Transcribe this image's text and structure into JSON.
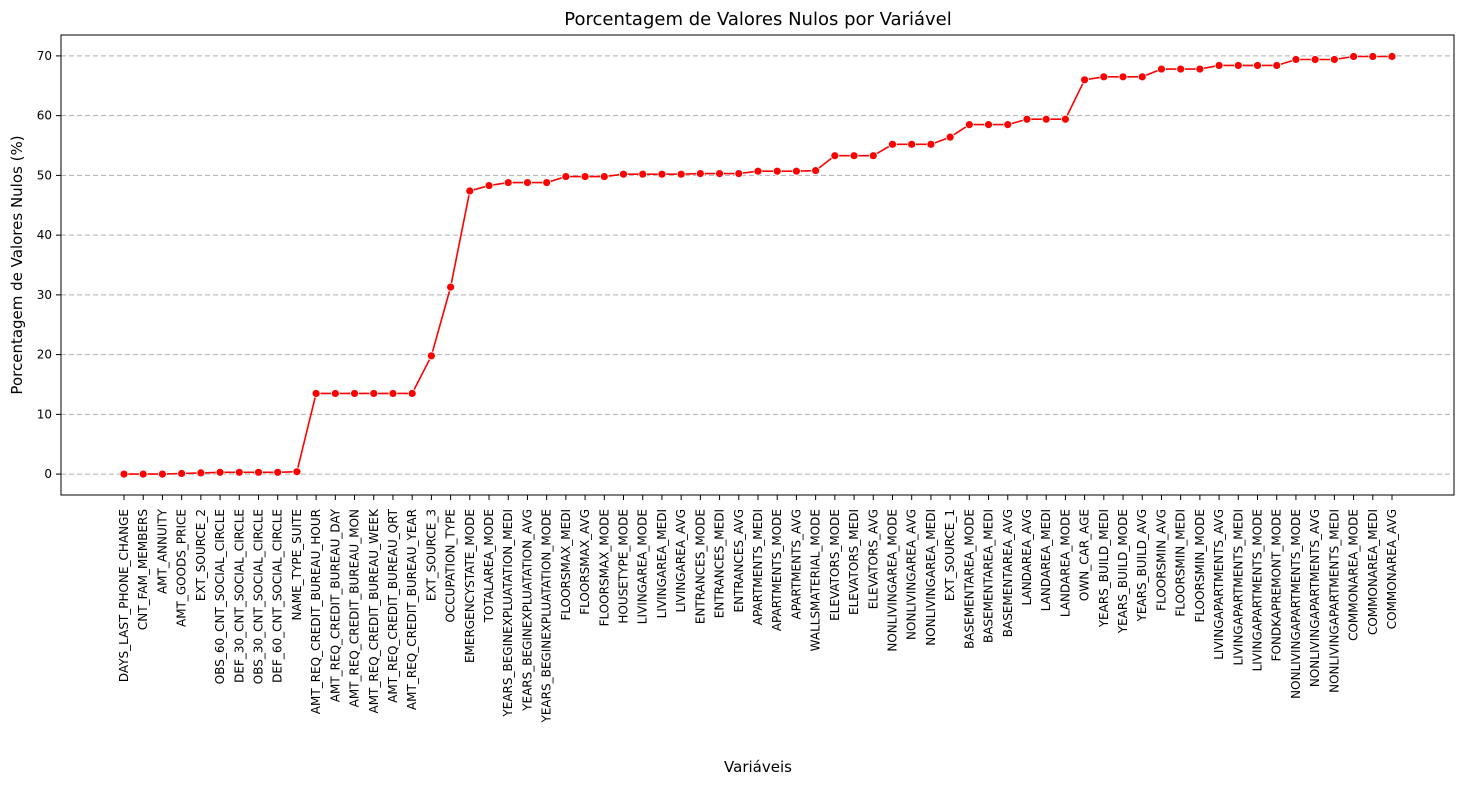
{
  "chart_data": {
    "type": "line",
    "title": "Porcentagem de Valores Nulos por Variável",
    "xlabel": "Variáveis",
    "ylabel": "Porcentagem de Valores Nulos (%)",
    "ylim": [
      -3.5,
      73.5
    ],
    "yticks": [
      0,
      10,
      20,
      30,
      40,
      50,
      60,
      70
    ],
    "grid": "y-dashed",
    "colors": {
      "line": "#ff0000",
      "marker": "#ff0000"
    },
    "categories": [
      "DAYS_LAST_PHONE_CHANGE",
      "CNT_FAM_MEMBERS",
      "AMT_ANNUITY",
      "AMT_GOODS_PRICE",
      "EXT_SOURCE_2",
      "OBS_60_CNT_SOCIAL_CIRCLE",
      "DEF_30_CNT_SOCIAL_CIRCLE",
      "OBS_30_CNT_SOCIAL_CIRCLE",
      "DEF_60_CNT_SOCIAL_CIRCLE",
      "NAME_TYPE_SUITE",
      "AMT_REQ_CREDIT_BUREAU_HOUR",
      "AMT_REQ_CREDIT_BUREAU_DAY",
      "AMT_REQ_CREDIT_BUREAU_MON",
      "AMT_REQ_CREDIT_BUREAU_WEEK",
      "AMT_REQ_CREDIT_BUREAU_QRT",
      "AMT_REQ_CREDIT_BUREAU_YEAR",
      "EXT_SOURCE_3",
      "OCCUPATION_TYPE",
      "EMERGENCYSTATE_MODE",
      "TOTALAREA_MODE",
      "YEARS_BEGINEXPLUATATION_MEDI",
      "YEARS_BEGINEXPLUATATION_AVG",
      "YEARS_BEGINEXPLUATATION_MODE",
      "FLOORSMAX_MEDI",
      "FLOORSMAX_AVG",
      "FLOORSMAX_MODE",
      "HOUSETYPE_MODE",
      "LIVINGAREA_MODE",
      "LIVINGAREA_MEDI",
      "LIVINGAREA_AVG",
      "ENTRANCES_MODE",
      "ENTRANCES_MEDI",
      "ENTRANCES_AVG",
      "APARTMENTS_MEDI",
      "APARTMENTS_MODE",
      "APARTMENTS_AVG",
      "WALLSMATERIAL_MODE",
      "ELEVATORS_MODE",
      "ELEVATORS_MEDI",
      "ELEVATORS_AVG",
      "NONLIVINGAREA_MODE",
      "NONLIVINGAREA_AVG",
      "NONLIVINGAREA_MEDI",
      "EXT_SOURCE_1",
      "BASEMENTAREA_MODE",
      "BASEMENTAREA_MEDI",
      "BASEMENTAREA_AVG",
      "LANDAREA_AVG",
      "LANDAREA_MEDI",
      "LANDAREA_MODE",
      "OWN_CAR_AGE",
      "YEARS_BUILD_MEDI",
      "YEARS_BUILD_MODE",
      "YEARS_BUILD_AVG",
      "FLOORSMIN_AVG",
      "FLOORSMIN_MEDI",
      "FLOORSMIN_MODE",
      "LIVINGAPARTMENTS_AVG",
      "LIVINGAPARTMENTS_MEDI",
      "LIVINGAPARTMENTS_MODE",
      "FONDKAPREMONT_MODE",
      "NONLIVINGAPARTMENTS_MODE",
      "NONLIVINGAPARTMENTS_AVG",
      "NONLIVINGAPARTMENTS_MEDI",
      "COMMONAREA_MODE",
      "COMMONAREA_MEDI",
      "COMMONAREA_AVG"
    ],
    "values": [
      0.0,
      0.0,
      0.0,
      0.1,
      0.2,
      0.3,
      0.3,
      0.3,
      0.3,
      0.4,
      13.5,
      13.5,
      13.5,
      13.5,
      13.5,
      13.5,
      19.8,
      31.3,
      47.4,
      48.3,
      48.8,
      48.8,
      48.8,
      49.8,
      49.8,
      49.8,
      50.2,
      50.2,
      50.2,
      50.2,
      50.3,
      50.3,
      50.3,
      50.7,
      50.7,
      50.7,
      50.8,
      53.3,
      53.3,
      53.3,
      55.2,
      55.2,
      55.2,
      56.4,
      58.5,
      58.5,
      58.5,
      59.4,
      59.4,
      59.4,
      66.0,
      66.5,
      66.5,
      66.5,
      67.8,
      67.8,
      67.8,
      68.4,
      68.4,
      68.4,
      68.4,
      69.4,
      69.4,
      69.4,
      69.9,
      69.9,
      69.9
    ]
  }
}
